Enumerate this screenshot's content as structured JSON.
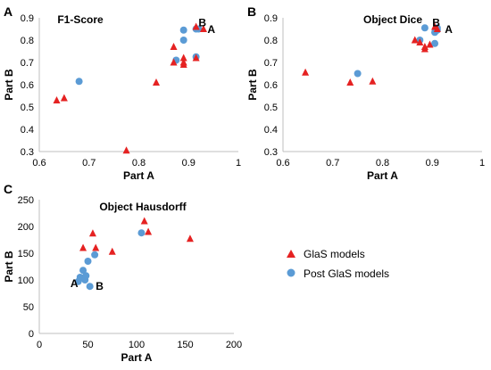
{
  "colors": {
    "glas": "#e52222",
    "post": "#5b9bd5",
    "axis": "#bfbfbf"
  },
  "legend": {
    "items": [
      {
        "label": "GlaS models",
        "series": "glas",
        "marker": "triangle"
      },
      {
        "label": "Post GlaS models",
        "series": "post",
        "marker": "circle"
      }
    ]
  },
  "chart_data": [
    {
      "type": "scatter",
      "panel": "A",
      "title": "F1-Score",
      "xlabel": "Part A",
      "ylabel": "Part B",
      "xlim": [
        0.6,
        1
      ],
      "ylim": [
        0.3,
        0.9
      ],
      "xticks": [
        "0.6",
        "0.7",
        "0.8",
        "0.9",
        "1"
      ],
      "yticks": [
        "0.3",
        "0.4",
        "0.5",
        "0.6",
        "0.7",
        "0.8",
        "0.9"
      ],
      "grid": false,
      "series": [
        {
          "name": "GlaS models",
          "key": "glas",
          "marker": "triangle",
          "points": [
            [
              0.635,
              0.53
            ],
            [
              0.65,
              0.54
            ],
            [
              0.775,
              0.305
            ],
            [
              0.835,
              0.61
            ],
            [
              0.87,
              0.77
            ],
            [
              0.87,
              0.7
            ],
            [
              0.89,
              0.69
            ],
            [
              0.89,
              0.7
            ],
            [
              0.89,
              0.72
            ],
            [
              0.915,
              0.72
            ],
            [
              0.915,
              0.86
            ],
            [
              0.93,
              0.85
            ]
          ]
        },
        {
          "name": "Post GlaS models",
          "key": "post",
          "marker": "circle",
          "points": [
            [
              0.68,
              0.615
            ],
            [
              0.875,
              0.71
            ],
            [
              0.89,
              0.8
            ],
            [
              0.89,
              0.845
            ],
            [
              0.915,
              0.725
            ],
            [
              0.915,
              0.85
            ],
            [
              0.92,
              0.85
            ]
          ]
        }
      ],
      "annotations": [
        {
          "text": "B",
          "x": 0.92,
          "y": 0.878
        },
        {
          "text": "A",
          "x": 0.938,
          "y": 0.848
        }
      ]
    },
    {
      "type": "scatter",
      "panel": "B",
      "title": "Object Dice",
      "xlabel": "Part A",
      "ylabel": "Part B",
      "xlim": [
        0.6,
        1
      ],
      "ylim": [
        0.3,
        0.9
      ],
      "xticks": [
        "0.6",
        "0.7",
        "0.8",
        "0.9",
        "1"
      ],
      "yticks": [
        "0.3",
        "0.4",
        "0.5",
        "0.6",
        "0.7",
        "0.8",
        "0.9"
      ],
      "grid": false,
      "series": [
        {
          "name": "GlaS models",
          "key": "glas",
          "marker": "triangle",
          "points": [
            [
              0.645,
              0.655
            ],
            [
              0.735,
              0.61
            ],
            [
              0.78,
              0.615
            ],
            [
              0.865,
              0.8
            ],
            [
              0.875,
              0.79
            ],
            [
              0.885,
              0.76
            ],
            [
              0.885,
              0.77
            ],
            [
              0.895,
              0.78
            ],
            [
              0.905,
              0.86
            ],
            [
              0.91,
              0.85
            ]
          ]
        },
        {
          "name": "Post GlaS models",
          "key": "post",
          "marker": "circle",
          "points": [
            [
              0.75,
              0.65
            ],
            [
              0.875,
              0.8
            ],
            [
              0.885,
              0.855
            ],
            [
              0.905,
              0.785
            ],
            [
              0.905,
              0.835
            ],
            [
              0.91,
              0.855
            ],
            [
              0.91,
              0.845
            ]
          ]
        }
      ],
      "annotations": [
        {
          "text": "B",
          "x": 0.9,
          "y": 0.878
        },
        {
          "text": "A",
          "x": 0.925,
          "y": 0.848
        }
      ]
    },
    {
      "type": "scatter",
      "panel": "C",
      "title": "Object Hausdorff",
      "xlabel": "Part A",
      "ylabel": "Part B",
      "xlim": [
        0,
        200
      ],
      "ylim": [
        0,
        250
      ],
      "xticks": [
        "0",
        "50",
        "100",
        "150",
        "200"
      ],
      "yticks": [
        "0",
        "50",
        "100",
        "150",
        "200",
        "250"
      ],
      "grid": false,
      "series": [
        {
          "name": "GlaS models",
          "key": "glas",
          "marker": "triangle",
          "points": [
            [
              45,
              160
            ],
            [
              55,
              187
            ],
            [
              58,
              160
            ],
            [
              75,
              153
            ],
            [
              108,
              210
            ],
            [
              112,
              190
            ],
            [
              155,
              177
            ]
          ]
        },
        {
          "name": "Post GlaS models",
          "key": "post",
          "marker": "circle",
          "points": [
            [
              40,
              97
            ],
            [
              42,
              105
            ],
            [
              45,
              118
            ],
            [
              47,
              100
            ],
            [
              48,
              108
            ],
            [
              50,
              135
            ],
            [
              52,
              88
            ],
            [
              57,
              147
            ],
            [
              105,
              188
            ]
          ]
        }
      ],
      "annotations": [
        {
          "text": "A",
          "x": 32,
          "y": 93
        },
        {
          "text": "B",
          "x": 58,
          "y": 88
        }
      ]
    }
  ]
}
